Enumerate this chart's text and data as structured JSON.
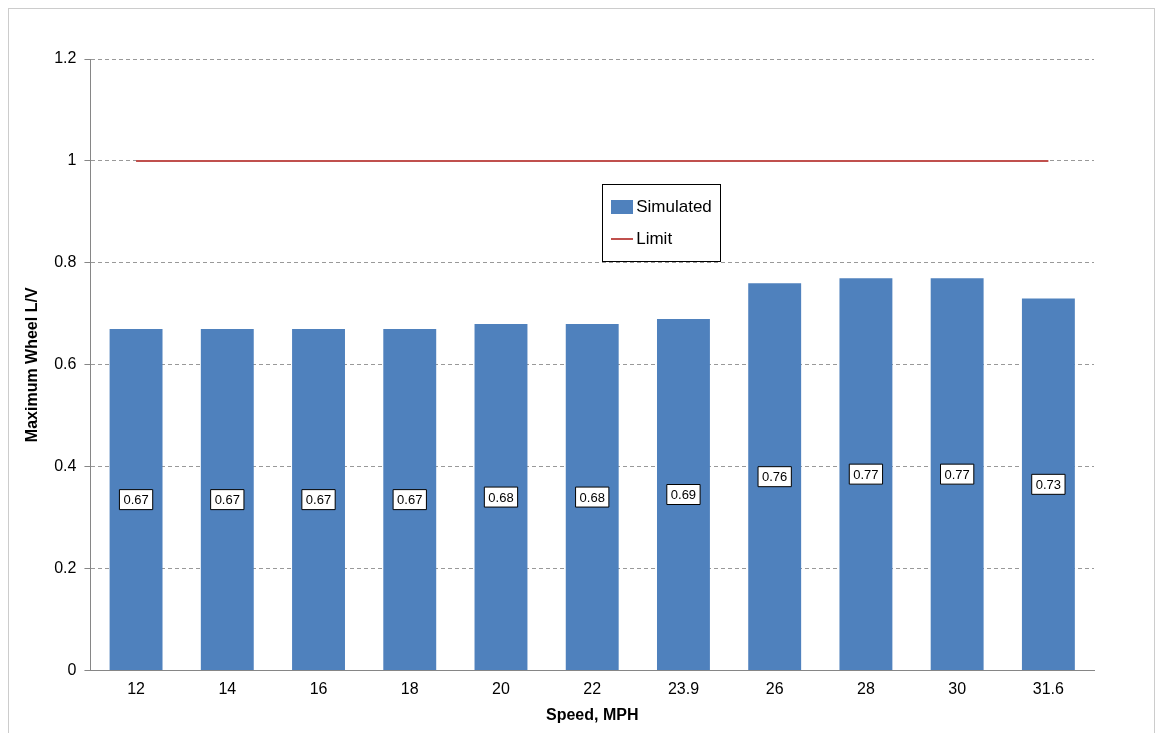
{
  "chart_data": {
    "type": "bar",
    "xlabel": "Speed, MPH",
    "ylabel": "Maximum Wheel L/V",
    "categories": [
      "12",
      "14",
      "16",
      "18",
      "20",
      "22",
      "23.9",
      "26",
      "28",
      "30",
      "31.6"
    ],
    "series": [
      {
        "name": "Simulated",
        "color": "#4f81bd",
        "values": [
          0.67,
          0.67,
          0.67,
          0.67,
          0.68,
          0.68,
          0.69,
          0.76,
          0.77,
          0.77,
          0.73
        ],
        "value_labels": [
          "0.67",
          "0.67",
          "0.67",
          "0.67",
          "0.68",
          "0.68",
          "0.69",
          "0.76",
          "0.77",
          "0.77",
          "0.73"
        ]
      },
      {
        "name": "Limit",
        "type": "line",
        "color": "#c0504d",
        "values": [
          1,
          1,
          1,
          1,
          1,
          1,
          1,
          1,
          1,
          1,
          1
        ]
      }
    ],
    "ylim": [
      0,
      1.2
    ],
    "yticks": [
      0,
      0.2,
      0.4,
      0.6,
      0.8,
      1,
      1.2
    ],
    "grid": "y",
    "legend": "top",
    "marker": "none",
    "line_style": "solid"
  }
}
